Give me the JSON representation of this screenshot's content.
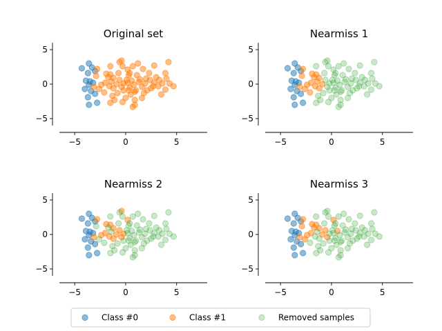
{
  "chart_data": [
    {
      "type": "scatter",
      "title": "Original set",
      "xlim": [
        -6.5,
        8
      ],
      "ylim": [
        -6,
        6
      ],
      "xticks": [
        -5,
        0,
        5
      ],
      "yticks": [
        -5,
        0,
        5
      ],
      "spines": [
        "left",
        "bottom"
      ],
      "series": [
        {
          "key": "class0",
          "points": "class0"
        },
        {
          "key": "class1",
          "points": "class1_all"
        }
      ]
    },
    {
      "type": "scatter",
      "title": "Nearmiss 1",
      "xlim": [
        -6.5,
        8
      ],
      "ylim": [
        -6,
        6
      ],
      "xticks": [
        -5,
        0,
        5
      ],
      "yticks": [
        -5,
        0,
        5
      ],
      "spines": [
        "left",
        "bottom"
      ],
      "series": [
        {
          "key": "class0",
          "points": "class0"
        },
        {
          "key": "class1",
          "points": "nm1_kept"
        },
        {
          "key": "removed",
          "points": "nm1_removed"
        }
      ]
    },
    {
      "type": "scatter",
      "title": "Nearmiss 2",
      "xlim": [
        -6.5,
        8
      ],
      "ylim": [
        -6,
        6
      ],
      "xticks": [
        -5,
        0,
        5
      ],
      "yticks": [
        -5,
        0,
        5
      ],
      "spines": [
        "left",
        "bottom"
      ],
      "series": [
        {
          "key": "class0",
          "points": "class0"
        },
        {
          "key": "class1",
          "points": "nm2_kept"
        },
        {
          "key": "removed",
          "points": "nm2_removed"
        }
      ]
    },
    {
      "type": "scatter",
      "title": "Nearmiss 3",
      "xlim": [
        -6.5,
        8
      ],
      "ylim": [
        -6,
        6
      ],
      "xticks": [
        -5,
        0,
        5
      ],
      "yticks": [
        -5,
        0,
        5
      ],
      "spines": [
        "left",
        "bottom"
      ],
      "series": [
        {
          "key": "class0",
          "points": "class0"
        },
        {
          "key": "class1",
          "points": "nm3_kept"
        },
        {
          "key": "removed",
          "points": "nm3_removed"
        }
      ]
    }
  ],
  "series_styles": {
    "class0": {
      "label": "Class #0",
      "color": "#1f77b4",
      "alpha": 0.5,
      "filled": true
    },
    "class1": {
      "label": "Class #1",
      "color": "#ff7f0e",
      "alpha": 0.5,
      "filled": true
    },
    "removed": {
      "label": "Removed samples",
      "color": "#2ca02c",
      "alpha": 0.25,
      "filled": true
    }
  },
  "legend": {
    "placement": "bottom-center",
    "ncol": 3,
    "items": [
      "class0",
      "class1",
      "removed"
    ]
  },
  "point_sets": {
    "class0": [
      [
        -4.3,
        2.3
      ],
      [
        -3.6,
        3.0
      ],
      [
        -3.3,
        2.4
      ],
      [
        -3.0,
        1.9
      ],
      [
        -3.7,
        1.6
      ],
      [
        -3.9,
        0.5
      ],
      [
        -3.5,
        0.4
      ],
      [
        -3.2,
        0.2
      ],
      [
        -3.6,
        -0.1
      ],
      [
        -4.0,
        -0.7
      ],
      [
        -3.4,
        -1.0
      ],
      [
        -3.0,
        -1.4
      ],
      [
        -3.7,
        -1.9
      ],
      [
        -3.6,
        -3.0
      ],
      [
        -2.8,
        -2.7
      ]
    ],
    "class1_all": [
      [
        -2.8,
        2.2
      ],
      [
        -2.9,
        1.2
      ],
      [
        -2.4,
        -0.1
      ],
      [
        -3.1,
        -0.4
      ],
      [
        -2.6,
        -0.7
      ],
      [
        -1.9,
        1.5
      ],
      [
        -1.5,
        1.4
      ],
      [
        -1.7,
        1.0
      ],
      [
        -1.2,
        0.9
      ],
      [
        -1.4,
        0.4
      ],
      [
        -2.0,
        0.2
      ],
      [
        -0.9,
        0.0
      ],
      [
        -1.6,
        -0.3
      ],
      [
        -1.2,
        -0.6
      ],
      [
        -2.1,
        -1.2
      ],
      [
        -1.3,
        -1.7
      ],
      [
        -0.8,
        -1.3
      ],
      [
        -0.6,
        0.6
      ],
      [
        -0.2,
        0.1
      ],
      [
        -0.4,
        -0.4
      ],
      [
        -1.5,
        2.6
      ],
      [
        -0.6,
        3.2
      ],
      [
        -0.3,
        2.6
      ],
      [
        -1.1,
        -2.3
      ],
      [
        -0.4,
        3.4
      ],
      [
        0.2,
        2.1
      ],
      [
        0.3,
        1.3
      ],
      [
        0.6,
        0.5
      ],
      [
        0.2,
        0.2
      ],
      [
        0.8,
        -0.1
      ],
      [
        0.4,
        -0.5
      ],
      [
        1.0,
        -0.9
      ],
      [
        0.5,
        -1.5
      ],
      [
        0.0,
        -2.0
      ],
      [
        0.9,
        -1.1
      ],
      [
        1.3,
        0.3
      ],
      [
        1.6,
        -0.4
      ],
      [
        1.9,
        0.1
      ],
      [
        2.1,
        -0.9
      ],
      [
        2.4,
        0.6
      ],
      [
        2.8,
        0.2
      ],
      [
        3.2,
        -0.3
      ],
      [
        3.6,
        0.1
      ],
      [
        4.0,
        0.8
      ],
      [
        4.3,
        0.1
      ],
      [
        4.7,
        -0.3
      ],
      [
        3.5,
        -1.5
      ],
      [
        3.9,
        1.6
      ],
      [
        4.2,
        3.2
      ],
      [
        2.8,
        2.7
      ],
      [
        2.3,
        1.6
      ],
      [
        1.7,
        2.2
      ],
      [
        1.2,
        3.0
      ],
      [
        0.7,
        2.6
      ],
      [
        0.9,
        -2.3
      ],
      [
        1.6,
        -2.0
      ],
      [
        0.7,
        -3.3
      ],
      [
        0.9,
        -3.0
      ],
      [
        -1.5,
        -2.7
      ],
      [
        -0.3,
        -2.6
      ],
      [
        0.3,
        -0.9
      ],
      [
        1.4,
        0.7
      ],
      [
        3.0,
        1.0
      ],
      [
        2.5,
        -0.6
      ],
      [
        3.9,
        -0.8
      ],
      [
        0.1,
        0.6
      ],
      [
        -0.2,
        -0.9
      ],
      [
        1.1,
        1.3
      ],
      [
        2.0,
        0.8
      ],
      [
        -0.7,
        1.6
      ],
      [
        1.8,
        -1.3
      ],
      [
        2.7,
        -0.3
      ],
      [
        3.3,
        0.6
      ],
      [
        0.4,
        1.6
      ]
    ],
    "nm1_kept": [
      [
        -2.8,
        2.2
      ],
      [
        -2.9,
        1.2
      ],
      [
        -2.4,
        -0.1
      ],
      [
        -3.1,
        -0.4
      ],
      [
        -2.6,
        -0.7
      ],
      [
        -1.9,
        1.5
      ],
      [
        -1.5,
        1.4
      ],
      [
        -1.7,
        1.0
      ],
      [
        -1.2,
        0.9
      ],
      [
        -1.4,
        0.4
      ],
      [
        -2.0,
        0.2
      ],
      [
        -0.9,
        0.0
      ],
      [
        -1.6,
        -0.3
      ],
      [
        -1.2,
        -0.6
      ],
      [
        -2.1,
        -1.2
      ]
    ],
    "nm1_removed": [
      [
        -1.3,
        -1.7
      ],
      [
        -0.8,
        -1.3
      ],
      [
        -0.6,
        0.6
      ],
      [
        -0.2,
        0.1
      ],
      [
        -0.4,
        -0.4
      ],
      [
        -1.5,
        2.6
      ],
      [
        -0.6,
        3.2
      ],
      [
        -0.3,
        2.6
      ],
      [
        -1.1,
        -2.3
      ],
      [
        -0.4,
        3.4
      ],
      [
        0.2,
        2.1
      ],
      [
        0.3,
        1.3
      ],
      [
        0.6,
        0.5
      ],
      [
        0.2,
        0.2
      ],
      [
        0.8,
        -0.1
      ],
      [
        0.4,
        -0.5
      ],
      [
        1.0,
        -0.9
      ],
      [
        0.5,
        -1.5
      ],
      [
        0.0,
        -2.0
      ],
      [
        0.9,
        -1.1
      ],
      [
        1.3,
        0.3
      ],
      [
        1.6,
        -0.4
      ],
      [
        1.9,
        0.1
      ],
      [
        2.1,
        -0.9
      ],
      [
        2.4,
        0.6
      ],
      [
        2.8,
        0.2
      ],
      [
        3.2,
        -0.3
      ],
      [
        3.6,
        0.1
      ],
      [
        4.0,
        0.8
      ],
      [
        4.3,
        0.1
      ],
      [
        4.7,
        -0.3
      ],
      [
        3.5,
        -1.5
      ],
      [
        3.9,
        1.6
      ],
      [
        4.2,
        3.2
      ],
      [
        2.8,
        2.7
      ],
      [
        2.3,
        1.6
      ],
      [
        1.7,
        2.2
      ],
      [
        1.2,
        3.0
      ],
      [
        0.7,
        2.6
      ],
      [
        0.9,
        -2.3
      ],
      [
        1.6,
        -2.0
      ],
      [
        0.7,
        -3.3
      ],
      [
        0.9,
        -3.0
      ],
      [
        -1.5,
        -2.7
      ],
      [
        -0.3,
        -2.6
      ],
      [
        0.3,
        -0.9
      ],
      [
        1.4,
        0.7
      ],
      [
        3.0,
        1.0
      ],
      [
        2.5,
        -0.6
      ],
      [
        3.9,
        -0.8
      ],
      [
        0.1,
        0.6
      ],
      [
        -0.2,
        -0.9
      ],
      [
        1.1,
        1.3
      ],
      [
        2.0,
        0.8
      ],
      [
        -0.7,
        1.6
      ],
      [
        1.8,
        -1.3
      ],
      [
        2.7,
        -0.3
      ],
      [
        3.3,
        0.6
      ],
      [
        0.4,
        1.6
      ]
    ],
    "nm2_kept": [
      [
        -2.8,
        2.2
      ],
      [
        -2.4,
        -0.1
      ],
      [
        -3.1,
        -0.4
      ],
      [
        -1.9,
        1.5
      ],
      [
        -1.5,
        1.4
      ],
      [
        -1.2,
        0.9
      ],
      [
        -2.0,
        0.2
      ],
      [
        -1.6,
        -0.3
      ],
      [
        -1.2,
        -0.6
      ],
      [
        -0.9,
        0.0
      ],
      [
        -0.6,
        0.6
      ],
      [
        -0.2,
        0.1
      ],
      [
        -0.4,
        -0.4
      ],
      [
        -0.4,
        3.4
      ],
      [
        0.2,
        2.1
      ]
    ],
    "nm2_removed": [
      [
        -2.9,
        1.2
      ],
      [
        -2.6,
        -0.7
      ],
      [
        -1.7,
        1.0
      ],
      [
        -1.4,
        0.4
      ],
      [
        -2.1,
        -1.2
      ],
      [
        -1.3,
        -1.7
      ],
      [
        -0.8,
        -1.3
      ],
      [
        -1.5,
        2.6
      ],
      [
        -0.6,
        3.2
      ],
      [
        -0.3,
        2.6
      ],
      [
        -1.1,
        -2.3
      ],
      [
        0.3,
        1.3
      ],
      [
        0.6,
        0.5
      ],
      [
        0.2,
        0.2
      ],
      [
        0.8,
        -0.1
      ],
      [
        0.4,
        -0.5
      ],
      [
        1.0,
        -0.9
      ],
      [
        0.5,
        -1.5
      ],
      [
        0.0,
        -2.0
      ],
      [
        0.9,
        -1.1
      ],
      [
        1.3,
        0.3
      ],
      [
        1.6,
        -0.4
      ],
      [
        1.9,
        0.1
      ],
      [
        2.1,
        -0.9
      ],
      [
        2.4,
        0.6
      ],
      [
        2.8,
        0.2
      ],
      [
        3.2,
        -0.3
      ],
      [
        3.6,
        0.1
      ],
      [
        4.0,
        0.8
      ],
      [
        4.3,
        0.1
      ],
      [
        4.7,
        -0.3
      ],
      [
        3.5,
        -1.5
      ],
      [
        3.9,
        1.6
      ],
      [
        4.2,
        3.2
      ],
      [
        2.8,
        2.7
      ],
      [
        2.3,
        1.6
      ],
      [
        1.7,
        2.2
      ],
      [
        1.2,
        3.0
      ],
      [
        0.7,
        2.6
      ],
      [
        0.9,
        -2.3
      ],
      [
        1.6,
        -2.0
      ],
      [
        0.7,
        -3.3
      ],
      [
        0.9,
        -3.0
      ],
      [
        -1.5,
        -2.7
      ],
      [
        -0.3,
        -2.6
      ],
      [
        0.3,
        -0.9
      ],
      [
        1.4,
        0.7
      ],
      [
        3.0,
        1.0
      ],
      [
        2.5,
        -0.6
      ],
      [
        3.9,
        -0.8
      ],
      [
        0.1,
        0.6
      ],
      [
        -0.2,
        -0.9
      ],
      [
        1.1,
        1.3
      ],
      [
        2.0,
        0.8
      ],
      [
        -0.7,
        1.6
      ],
      [
        1.8,
        -1.3
      ],
      [
        2.7,
        -0.3
      ],
      [
        3.3,
        0.6
      ],
      [
        0.4,
        1.6
      ]
    ],
    "nm3_kept": [
      [
        -2.8,
        2.2
      ],
      [
        -2.9,
        1.2
      ],
      [
        -2.4,
        -0.1
      ],
      [
        -3.1,
        -0.4
      ],
      [
        -2.6,
        -0.7
      ],
      [
        -1.9,
        1.5
      ],
      [
        -1.5,
        1.4
      ],
      [
        -1.7,
        1.0
      ],
      [
        -1.2,
        0.9
      ],
      [
        -2.0,
        0.2
      ],
      [
        -0.9,
        0.0
      ],
      [
        -0.6,
        0.6
      ],
      [
        -0.4,
        -0.4
      ],
      [
        0.2,
        2.1
      ],
      [
        0.6,
        0.5
      ]
    ],
    "nm3_removed": [
      [
        -1.4,
        0.4
      ],
      [
        -1.6,
        -0.3
      ],
      [
        -1.2,
        -0.6
      ],
      [
        -2.1,
        -1.2
      ],
      [
        -1.3,
        -1.7
      ],
      [
        -0.8,
        -1.3
      ],
      [
        -0.2,
        0.1
      ],
      [
        -1.5,
        2.6
      ],
      [
        -0.6,
        3.2
      ],
      [
        -0.3,
        2.6
      ],
      [
        -1.1,
        -2.3
      ],
      [
        -0.4,
        3.4
      ],
      [
        0.3,
        1.3
      ],
      [
        0.2,
        0.2
      ],
      [
        0.8,
        -0.1
      ],
      [
        0.4,
        -0.5
      ],
      [
        1.0,
        -0.9
      ],
      [
        0.5,
        -1.5
      ],
      [
        0.0,
        -2.0
      ],
      [
        0.9,
        -1.1
      ],
      [
        1.3,
        0.3
      ],
      [
        1.6,
        -0.4
      ],
      [
        1.9,
        0.1
      ],
      [
        2.1,
        -0.9
      ],
      [
        2.4,
        0.6
      ],
      [
        2.8,
        0.2
      ],
      [
        3.2,
        -0.3
      ],
      [
        3.6,
        0.1
      ],
      [
        4.0,
        0.8
      ],
      [
        4.3,
        0.1
      ],
      [
        4.7,
        -0.3
      ],
      [
        3.5,
        -1.5
      ],
      [
        3.9,
        1.6
      ],
      [
        4.2,
        3.2
      ],
      [
        2.8,
        2.7
      ],
      [
        2.3,
        1.6
      ],
      [
        1.7,
        2.2
      ],
      [
        1.2,
        3.0
      ],
      [
        0.7,
        2.6
      ],
      [
        0.9,
        -2.3
      ],
      [
        1.6,
        -2.0
      ],
      [
        0.7,
        -3.3
      ],
      [
        0.9,
        -3.0
      ],
      [
        -1.5,
        -2.7
      ],
      [
        -0.3,
        -2.6
      ],
      [
        0.3,
        -0.9
      ],
      [
        1.4,
        0.7
      ],
      [
        3.0,
        1.0
      ],
      [
        2.5,
        -0.6
      ],
      [
        3.9,
        -0.8
      ],
      [
        0.1,
        0.6
      ],
      [
        -0.2,
        -0.9
      ],
      [
        1.1,
        1.3
      ],
      [
        2.0,
        0.8
      ],
      [
        -0.7,
        1.6
      ],
      [
        1.8,
        -1.3
      ],
      [
        2.7,
        -0.3
      ],
      [
        3.3,
        0.6
      ],
      [
        0.4,
        1.6
      ]
    ]
  }
}
